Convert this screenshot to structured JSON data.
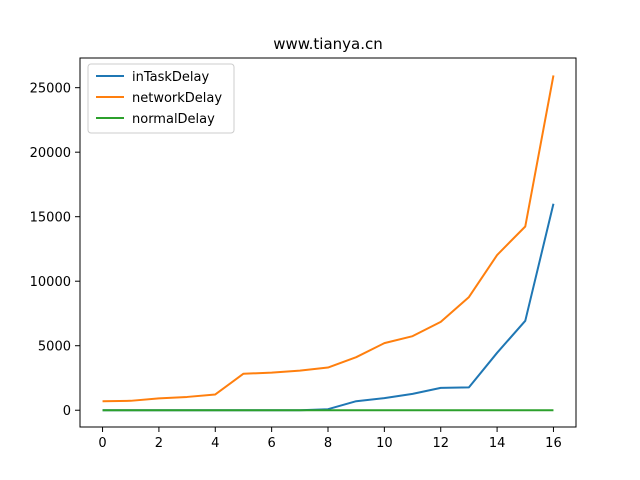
{
  "chart_data": {
    "type": "line",
    "title": "www.tianya.cn",
    "xlabel": "",
    "ylabel": "",
    "xlim": [
      -0.8,
      16.8
    ],
    "ylim": [
      -1300,
      27300
    ],
    "grid": false,
    "legend_placement": "top-left",
    "x": [
      0,
      1,
      2,
      3,
      4,
      5,
      6,
      7,
      8,
      9,
      10,
      11,
      12,
      13,
      14,
      15,
      16
    ],
    "x_ticks": [
      0,
      2,
      4,
      6,
      8,
      10,
      12,
      14,
      16
    ],
    "x_tick_labels": [
      "0",
      "2",
      "4",
      "6",
      "8",
      "10",
      "12",
      "14",
      "16"
    ],
    "y_ticks": [
      0,
      5000,
      10000,
      15000,
      20000,
      25000
    ],
    "y_tick_labels": [
      "0",
      "5000",
      "10000",
      "15000",
      "20000",
      "25000"
    ],
    "series": [
      {
        "name": "inTaskDelay",
        "color": "#1f77b4",
        "values": [
          0,
          0,
          0,
          0,
          0,
          0,
          0,
          0,
          80,
          700,
          940,
          1270,
          1730,
          1770,
          4450,
          6930,
          16000
        ]
      },
      {
        "name": "networkDelay",
        "color": "#ff7f0e",
        "values": [
          700,
          730,
          920,
          1030,
          1220,
          2830,
          2910,
          3070,
          3310,
          4110,
          5200,
          5740,
          6850,
          8770,
          12030,
          14240,
          25950
        ]
      },
      {
        "name": "normalDelay",
        "color": "#2ca02c",
        "values": [
          0,
          0,
          0,
          0,
          0,
          0,
          0,
          0,
          0,
          0,
          0,
          0,
          0,
          0,
          0,
          0,
          0
        ]
      }
    ]
  }
}
